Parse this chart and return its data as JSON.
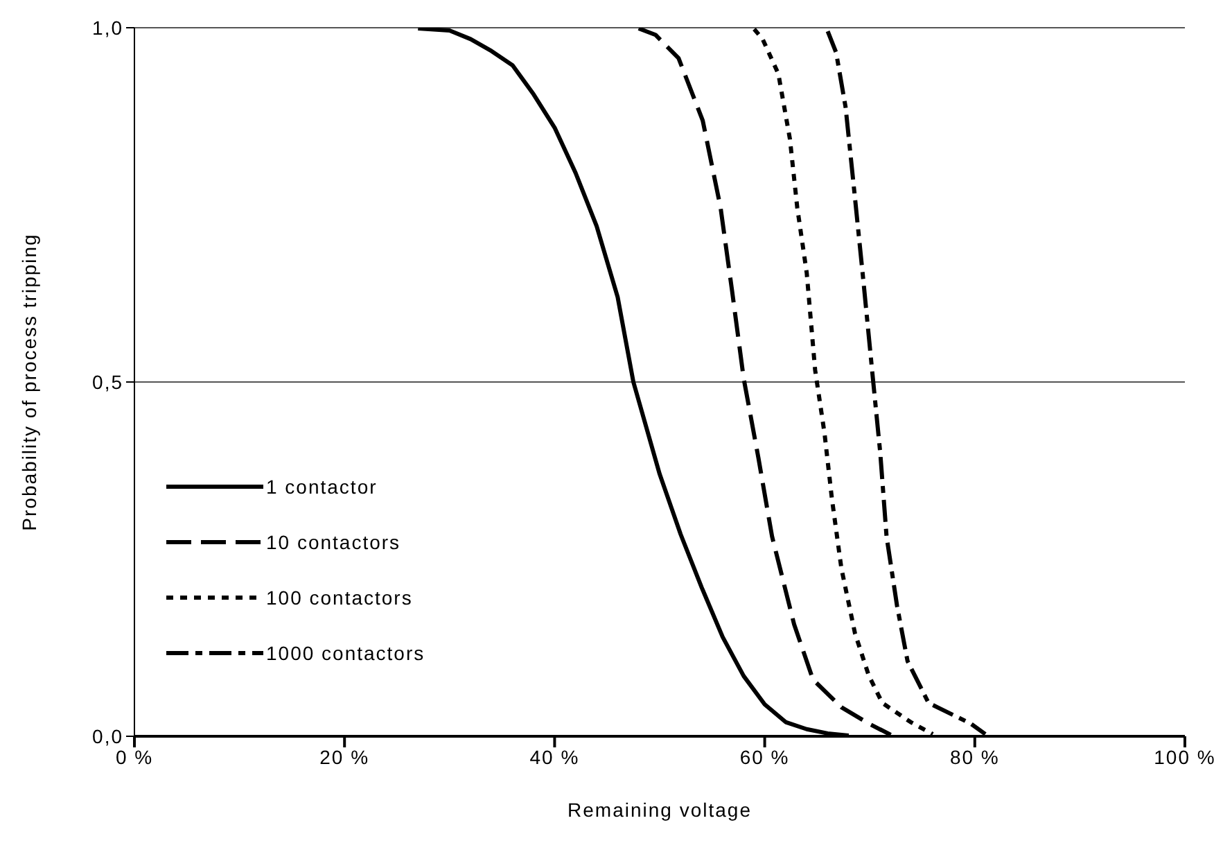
{
  "chart_data": {
    "type": "line",
    "xlabel": "Remaining voltage",
    "ylabel": "Probability of process tripping",
    "xlim": [
      0,
      100
    ],
    "ylim": [
      0,
      1
    ],
    "xticks": [
      {
        "value": 0,
        "label": "0 %"
      },
      {
        "value": 20,
        "label": "20 %"
      },
      {
        "value": 40,
        "label": "40 %"
      },
      {
        "value": 60,
        "label": "60 %"
      },
      {
        "value": 80,
        "label": "80 %"
      },
      {
        "value": 100,
        "label": "100 %"
      }
    ],
    "yticks": [
      {
        "value": 0,
        "label": "0,0"
      },
      {
        "value": 0.5,
        "label": "0,5"
      },
      {
        "value": 1,
        "label": "1,0"
      }
    ],
    "grid": "y",
    "legend": "left",
    "marker": "none",
    "series": [
      {
        "name": "1 contactor",
        "color": "#000000",
        "line_style": "solid",
        "x": [
          27,
          30,
          32,
          34,
          36,
          38,
          40,
          42,
          44,
          46,
          47.5,
          50,
          52,
          54,
          56,
          58,
          60,
          62,
          64,
          66,
          68
        ],
        "values": [
          0.999,
          0.996,
          0.984,
          0.967,
          0.947,
          0.906,
          0.859,
          0.795,
          0.72,
          0.62,
          0.5,
          0.37,
          0.285,
          0.21,
          0.14,
          0.085,
          0.045,
          0.02,
          0.01,
          0.004,
          0.001
        ]
      },
      {
        "name": "10 contactors",
        "color": "#000000",
        "line_style": "dashed",
        "x": [
          48,
          49.6,
          51.8,
          54.1,
          55.8,
          56.9,
          58,
          59.4,
          60.7,
          62.8,
          64.6,
          67.3,
          69.9,
          72
        ],
        "values": [
          0.999,
          0.99,
          0.957,
          0.869,
          0.746,
          0.628,
          0.505,
          0.393,
          0.282,
          0.158,
          0.08,
          0.041,
          0.018,
          0.002
        ]
      },
      {
        "name": "100 contactors",
        "color": "#000000",
        "line_style": "dotted",
        "x": [
          59,
          59.8,
          61.3,
          62.4,
          63.1,
          64,
          64.8,
          65.7,
          66.4,
          67.3,
          68.6,
          69.9,
          71.2,
          73.9,
          76
        ],
        "values": [
          0.998,
          0.984,
          0.935,
          0.843,
          0.746,
          0.654,
          0.517,
          0.427,
          0.335,
          0.237,
          0.145,
          0.086,
          0.047,
          0.02,
          0.003
        ]
      },
      {
        "name": "1000 contactors",
        "color": "#000000",
        "line_style": "dashdot",
        "x": [
          66,
          66.8,
          67.7,
          68.6,
          69.4,
          70.3,
          71,
          71.6,
          72.6,
          73.6,
          75.6,
          79.6,
          81
        ],
        "values": [
          0.995,
          0.965,
          0.888,
          0.759,
          0.642,
          0.505,
          0.4,
          0.282,
          0.184,
          0.106,
          0.047,
          0.018,
          0.003
        ]
      }
    ]
  }
}
